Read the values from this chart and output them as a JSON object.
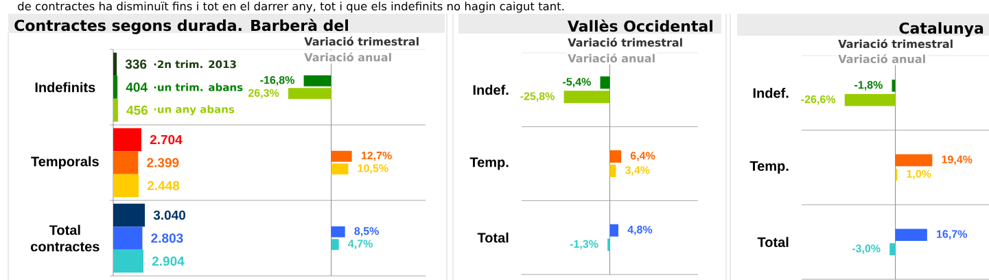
{
  "chart_data": [
    {
      "type": "bar",
      "orientation": "horizontal",
      "title": "Contractes segons durada. Barberà del",
      "annotations": [
        "de contractes ha disminuït fins i tot en el darrer any, tot i que els indefinits no hagin caigut tant."
      ],
      "categories": [
        "Indefinits",
        "Temporals",
        "Total contractes"
      ],
      "series": [
        {
          "name": "·2n trim. 2013",
          "colors": [
            "#193d0c",
            "#ff0000",
            "#003366"
          ],
          "values": [
            336,
            2704,
            3040
          ],
          "value_labels": [
            "336",
            "2.704",
            "3.040"
          ]
        },
        {
          "name": "·un trim. abans",
          "colors": [
            "#008000",
            "#ff6600",
            "#3366ff"
          ],
          "values": [
            404,
            2399,
            2803
          ],
          "value_labels": [
            "404",
            "2.399",
            "2.803"
          ]
        },
        {
          "name": "·un any abans",
          "colors": [
            "#99cc00",
            "#ffcc00",
            "#33cccc"
          ],
          "values": [
            456,
            2448,
            2904
          ],
          "value_labels": [
            "456",
            "2.448",
            "2.904"
          ]
        }
      ],
      "grid": "y",
      "legend": "top",
      "tick_labels": "y"
    },
    {
      "type": "bar",
      "orientation": "horizontal",
      "categories": [
        null,
        null,
        null
      ],
      "annotations": [
        "Variació trimestral",
        "Variació anual",
        "26,3%"
      ],
      "series": [
        {
          "colors": [
            "#008000",
            "#ff6600",
            "#3366ff"
          ],
          "values": [
            -16.8,
            12.7,
            8.5
          ],
          "value_labels": [
            "-16,8%",
            "12,7%",
            "8,5%"
          ]
        },
        {
          "colors": [
            "#99cc00",
            "#ffcc00",
            "#33cccc"
          ],
          "values": [
            -26.3,
            10.5,
            4.7
          ],
          "value_labels": [
            null,
            "10,5%",
            "4,7%"
          ]
        }
      ],
      "grid": "y"
    },
    {
      "type": "bar",
      "orientation": "horizontal",
      "title": "Vallès Occidental",
      "categories": [
        "Indef.",
        "Temp.",
        "Total"
      ],
      "annotations": [
        "Variació trimestral",
        "Variació anual"
      ],
      "series": [
        {
          "colors": [
            "#008000",
            "#ff6600",
            "#3366ff"
          ],
          "values": [
            -5.4,
            6.4,
            4.8
          ],
          "value_labels": [
            "-5,4%",
            "6,4%",
            "4,8%"
          ]
        },
        {
          "colors": [
            "#99cc00",
            "#ffcc00",
            "#33cccc"
          ],
          "values": [
            -25.8,
            3.4,
            -1.3
          ],
          "value_labels": [
            "-25,8%",
            "3,4%",
            "-1,3%"
          ]
        }
      ],
      "grid": "y",
      "tick_labels": "y"
    },
    {
      "type": "bar",
      "orientation": "horizontal",
      "title": "Catalunya",
      "categories": [
        "Indef.",
        "Temp.",
        "Total"
      ],
      "annotations": [
        "Variació trimestral",
        "Variació anual"
      ],
      "series": [
        {
          "colors": [
            "#008000",
            "#ff6600",
            "#3366ff"
          ],
          "values": [
            -1.8,
            19.4,
            16.7
          ],
          "value_labels": [
            "-1,8%",
            "19,4%",
            "16,7%"
          ]
        },
        {
          "colors": [
            "#99cc00",
            "#ffcc00",
            "#33cccc"
          ],
          "values": [
            -26.6,
            1.0,
            -3.0
          ],
          "value_labels": [
            "-26,6%",
            "1,0%",
            "-3,0%"
          ]
        }
      ],
      "grid": "y",
      "tick_labels": "y"
    }
  ]
}
